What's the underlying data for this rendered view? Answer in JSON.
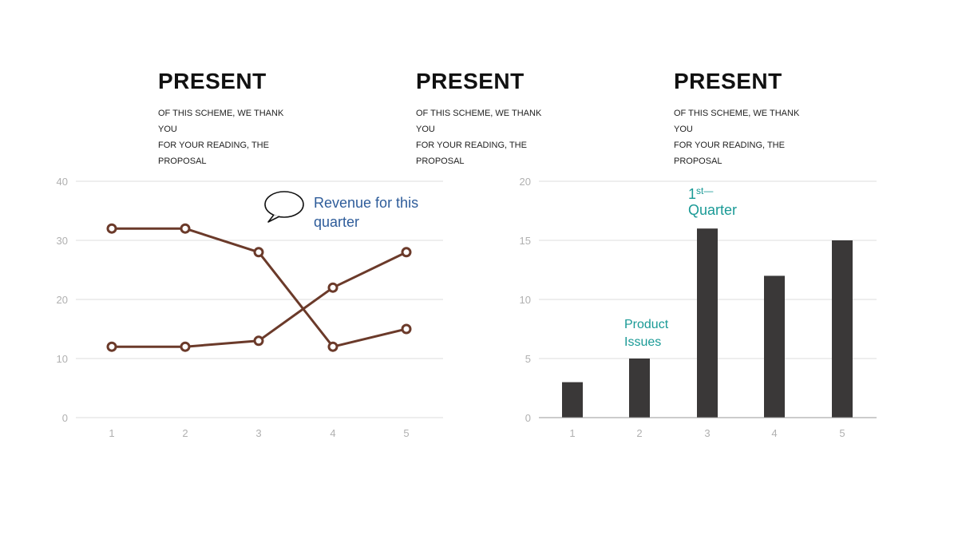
{
  "headings": [
    {
      "title": "PRESENT",
      "desc_lines": [
        "OF THIS SCHEME, WE THANK YOU",
        "FOR YOUR READING, THE",
        "PROPOSAL"
      ]
    },
    {
      "title": "PRESENT",
      "desc_lines": [
        "OF THIS SCHEME, WE THANK YOU",
        "FOR YOUR READING, THE",
        "PROPOSAL"
      ]
    },
    {
      "title": "PRESENT",
      "desc_lines": [
        "OF THIS SCHEME, WE THANK YOU",
        "FOR YOUR READING, THE",
        "PROPOSAL"
      ]
    }
  ],
  "chart_data": [
    {
      "type": "line",
      "x": [
        1,
        2,
        3,
        4,
        5
      ],
      "series": [
        {
          "values": [
            32,
            32,
            28,
            12,
            15
          ]
        },
        {
          "values": [
            12,
            12,
            13,
            22,
            28
          ]
        }
      ],
      "yticks": [
        0,
        10,
        20,
        30,
        40
      ],
      "ylim": [
        0,
        40
      ],
      "grid": true,
      "color": "#6b3a2a",
      "annotation": {
        "lines": [
          "Revenue for this",
          "quarter"
        ],
        "color": "#2e5c9a",
        "icon": "speech-bubble-icon"
      }
    },
    {
      "type": "bar",
      "categories": [
        "1",
        "2",
        "3",
        "4",
        "5"
      ],
      "values": [
        3,
        5,
        16,
        12,
        15
      ],
      "yticks": [
        0,
        5,
        10,
        15,
        20
      ],
      "ylim": [
        0,
        20
      ],
      "grid": true,
      "color": "#3a3838",
      "annotations": [
        {
          "lines": [
            "Product",
            "Issues"
          ],
          "color": "#1a9a96"
        },
        {
          "main": "1",
          "sup": "st—",
          "line2": "Quarter",
          "color": "#1a9a96"
        }
      ]
    }
  ]
}
